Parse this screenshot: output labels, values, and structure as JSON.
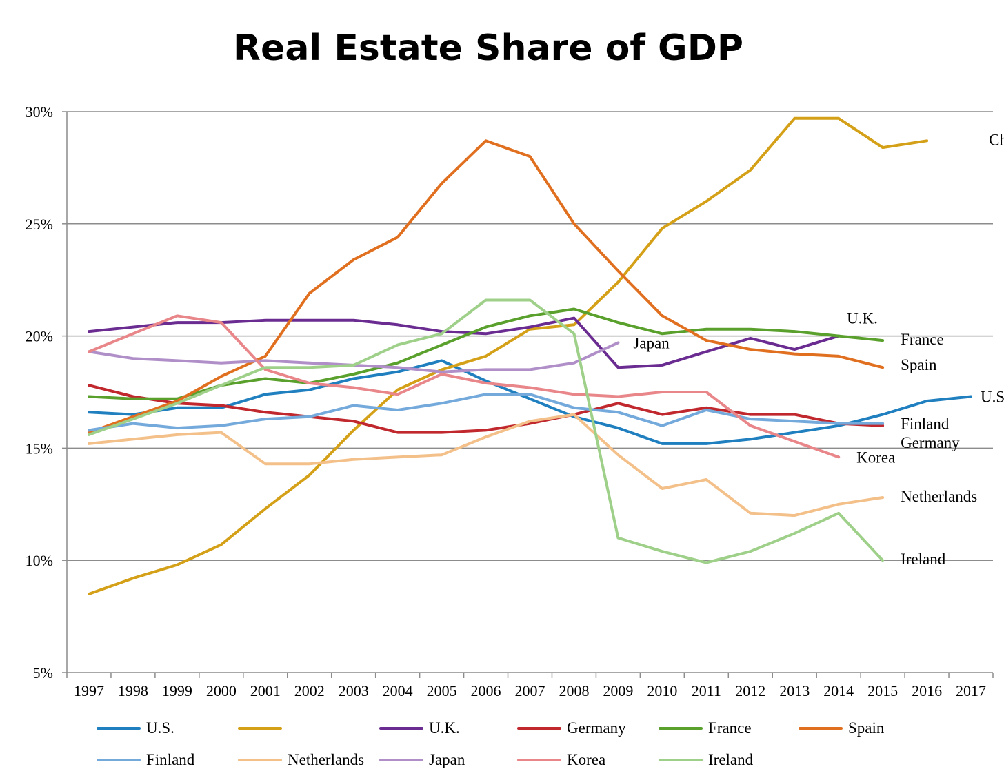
{
  "chart_data": {
    "type": "line",
    "title": "Real Estate Share of GDP",
    "xlabel": "",
    "ylabel": "",
    "ylim": [
      5,
      30
    ],
    "yticks": [
      "5%",
      "10%",
      "15%",
      "20%",
      "25%",
      "30%"
    ],
    "ytick_values": [
      5,
      10,
      15,
      20,
      25,
      30
    ],
    "grid": "horizontal",
    "legend_position": "bottom",
    "categories": [
      "1997",
      "1998",
      "1999",
      "2000",
      "2001",
      "2002",
      "2003",
      "2004",
      "2005",
      "2006",
      "2007",
      "2008",
      "2009",
      "2010",
      "2011",
      "2012",
      "2013",
      "2014",
      "2015",
      "2016",
      "2017"
    ],
    "series": [
      {
        "name": "U.S.",
        "legend_label": "U.S.",
        "end_label": "U.S",
        "color": "#1f7fbf",
        "values": [
          16.6,
          16.5,
          16.8,
          16.8,
          17.4,
          17.6,
          18.1,
          18.4,
          18.9,
          18.0,
          17.2,
          16.4,
          15.9,
          15.2,
          15.2,
          15.4,
          15.7,
          16.0,
          16.5,
          17.1,
          17.3
        ]
      },
      {
        "name": "China",
        "legend_label": "",
        "end_label": "China",
        "color": "#d4a017",
        "values": [
          8.5,
          9.2,
          9.8,
          10.7,
          12.3,
          13.8,
          15.8,
          17.6,
          18.5,
          19.1,
          20.3,
          20.5,
          22.4,
          24.8,
          26.0,
          27.4,
          29.7,
          29.7,
          28.4,
          28.7,
          null
        ]
      },
      {
        "name": "U.K.",
        "legend_label": "U.K.",
        "end_label": "U.K.",
        "color": "#6a2c91",
        "values": [
          20.2,
          20.4,
          20.6,
          20.6,
          20.7,
          20.7,
          20.7,
          20.5,
          20.2,
          20.1,
          20.4,
          20.8,
          18.6,
          18.7,
          19.3,
          19.9,
          19.4,
          20.0,
          null,
          null,
          null
        ]
      },
      {
        "name": "Germany",
        "legend_label": "Germany",
        "end_label": "Germany",
        "color": "#c0282d",
        "values": [
          17.8,
          17.3,
          17.0,
          16.9,
          16.6,
          16.4,
          16.2,
          15.7,
          15.7,
          15.8,
          16.1,
          16.5,
          17.0,
          16.5,
          16.8,
          16.5,
          16.5,
          16.1,
          16.0,
          null,
          null
        ]
      },
      {
        "name": "France",
        "legend_label": "France",
        "end_label": "France",
        "color": "#5aa02c",
        "values": [
          17.3,
          17.2,
          17.2,
          17.8,
          18.1,
          17.9,
          18.3,
          18.8,
          19.6,
          20.4,
          20.9,
          21.2,
          20.6,
          20.1,
          20.3,
          20.3,
          20.2,
          20.0,
          19.8,
          null,
          null
        ]
      },
      {
        "name": "Spain",
        "legend_label": "Spain",
        "end_label": "Spain",
        "color": "#e07020",
        "values": [
          15.7,
          16.4,
          17.1,
          18.2,
          19.1,
          21.9,
          23.4,
          24.4,
          26.8,
          28.7,
          28.0,
          25.0,
          22.9,
          20.9,
          19.8,
          19.4,
          19.2,
          19.1,
          18.6,
          null,
          null
        ]
      },
      {
        "name": "Finland",
        "legend_label": "Finland",
        "end_label": "Finland",
        "color": "#74a9dc",
        "values": [
          15.8,
          16.1,
          15.9,
          16.0,
          16.3,
          16.4,
          16.9,
          16.7,
          17.0,
          17.4,
          17.4,
          16.8,
          16.6,
          16.0,
          16.7,
          16.3,
          16.2,
          16.1,
          16.1,
          null,
          null
        ]
      },
      {
        "name": "Netherlands",
        "legend_label": "Netherlands",
        "end_label": "Netherlands",
        "color": "#f4c08a",
        "values": [
          15.2,
          15.4,
          15.6,
          15.7,
          14.3,
          14.3,
          14.5,
          14.6,
          14.7,
          15.5,
          16.2,
          16.5,
          14.7,
          13.2,
          13.6,
          12.1,
          12.0,
          12.5,
          12.8,
          null,
          null
        ]
      },
      {
        "name": "Japan",
        "legend_label": "Japan",
        "end_label": "Japan",
        "color": "#b08fc8",
        "values": [
          19.3,
          19.0,
          18.9,
          18.8,
          18.9,
          18.8,
          18.7,
          18.6,
          18.4,
          18.5,
          18.5,
          18.8,
          19.7,
          null,
          null,
          null,
          null,
          null,
          null,
          null,
          null
        ]
      },
      {
        "name": "Korea",
        "legend_label": "Korea",
        "end_label": "Korea",
        "color": "#e8868a",
        "values": [
          19.3,
          20.1,
          20.9,
          20.6,
          18.5,
          17.9,
          17.7,
          17.4,
          18.3,
          17.9,
          17.7,
          17.4,
          17.3,
          17.5,
          17.5,
          16.0,
          15.3,
          14.6,
          null,
          null,
          null
        ]
      },
      {
        "name": "Ireland",
        "legend_label": "Ireland",
        "end_label": "Ireland",
        "color": "#9fd08a",
        "values": [
          15.6,
          16.3,
          17.0,
          17.8,
          18.6,
          18.6,
          18.7,
          19.6,
          20.1,
          21.6,
          21.6,
          20.1,
          11.0,
          10.4,
          9.9,
          10.4,
          11.2,
          12.1,
          10.0,
          null,
          null
        ]
      }
    ]
  }
}
